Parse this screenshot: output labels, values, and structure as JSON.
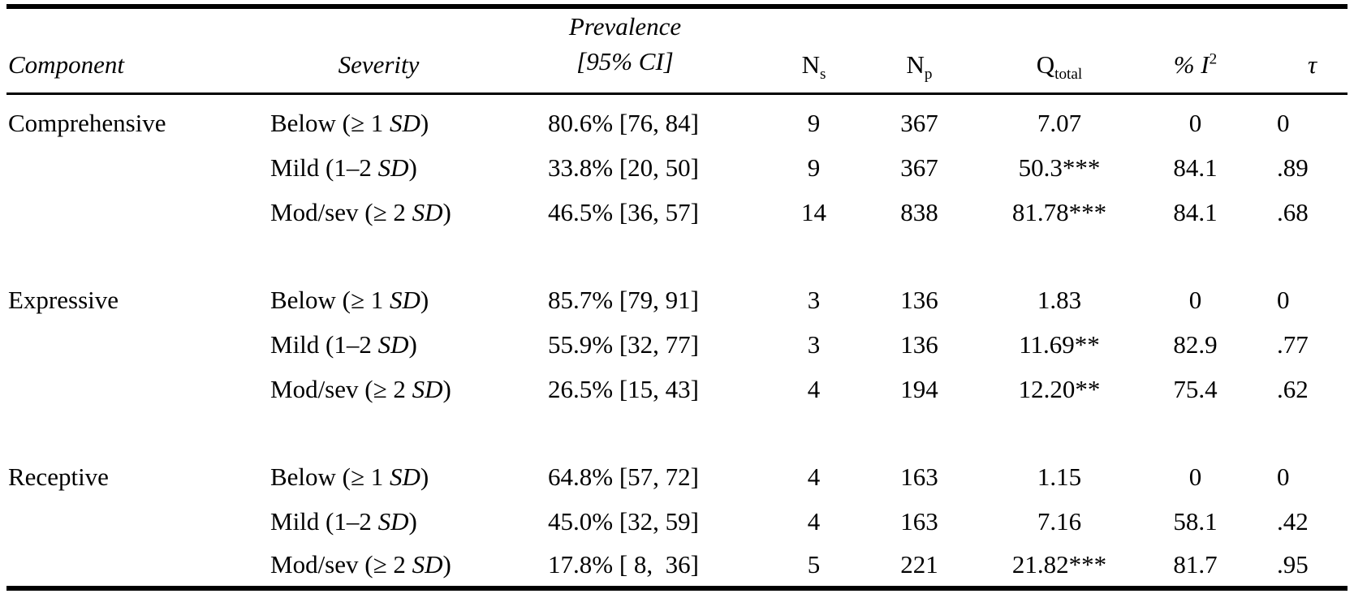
{
  "page": {
    "background": "#ffffff",
    "text_color": "#000000"
  },
  "table": {
    "headers": {
      "component": "Component",
      "severity": "Severity",
      "prevalence_line1": "Prevalence",
      "prevalence_line2": "[95% CI]",
      "n_studies_base": "N",
      "n_studies_sub": "s",
      "n_participants_base": "N",
      "n_participants_sub": "p",
      "q_base": "Q",
      "q_sub": "total",
      "i2_base": "% I",
      "i2_sup": "2",
      "tau": "τ"
    },
    "groups": [
      {
        "component": "Comprehensive",
        "rows": [
          {
            "severity_prefix": "Below (≥ 1 ",
            "severity_italic": "SD",
            "severity_suffix": ")",
            "prevalence": "80.6% [76, 84]",
            "ns": "9",
            "np": "367",
            "q": "7.07",
            "i2": "0",
            "tau": "0"
          },
          {
            "severity_prefix": "Mild (1–2 ",
            "severity_italic": "SD",
            "severity_suffix": ")",
            "prevalence": "33.8% [20, 50]",
            "ns": "9",
            "np": "367",
            "q": "50.3***",
            "i2": "84.1",
            "tau": ".89"
          },
          {
            "severity_prefix": "Mod/sev (≥ 2 ",
            "severity_italic": "SD",
            "severity_suffix": ")",
            "prevalence": "46.5% [36, 57]",
            "ns": "14",
            "np": "838",
            "q": "81.78***",
            "i2": "84.1",
            "tau": ".68"
          }
        ]
      },
      {
        "component": "Expressive",
        "rows": [
          {
            "severity_prefix": "Below (≥ 1 ",
            "severity_italic": "SD",
            "severity_suffix": ")",
            "prevalence": "85.7% [79, 91]",
            "ns": "3",
            "np": "136",
            "q": "1.83",
            "i2": "0",
            "tau": "0"
          },
          {
            "severity_prefix": "Mild (1–2 ",
            "severity_italic": "SD",
            "severity_suffix": ")",
            "prevalence": "55.9% [32, 77]",
            "ns": "3",
            "np": "136",
            "q": "11.69**",
            "i2": "82.9",
            "tau": ".77"
          },
          {
            "severity_prefix": "Mod/sev (≥ 2 ",
            "severity_italic": "SD",
            "severity_suffix": ")",
            "prevalence": "26.5% [15, 43]",
            "ns": "4",
            "np": "194",
            "q": "12.20**",
            "i2": "75.4",
            "tau": ".62"
          }
        ]
      },
      {
        "component": "Receptive",
        "rows": [
          {
            "severity_prefix": "Below (≥ 1 ",
            "severity_italic": "SD",
            "severity_suffix": ")",
            "prevalence": "64.8% [57, 72]",
            "ns": "4",
            "np": "163",
            "q": "1.15",
            "i2": "0",
            "tau": "0"
          },
          {
            "severity_prefix": "Mild (1–2 ",
            "severity_italic": "SD",
            "severity_suffix": ")",
            "prevalence": "45.0% [32, 59]",
            "ns": "4",
            "np": "163",
            "q": "7.16",
            "i2": "58.1",
            "tau": ".42"
          },
          {
            "severity_prefix": "Mod/sev (≥ 2 ",
            "severity_italic": "SD",
            "severity_suffix": ")",
            "prevalence": "17.8% [ 8,  36]",
            "ns": "5",
            "np": "221",
            "q": "21.82***",
            "i2": "81.7",
            "tau": ".95"
          }
        ]
      }
    ]
  }
}
